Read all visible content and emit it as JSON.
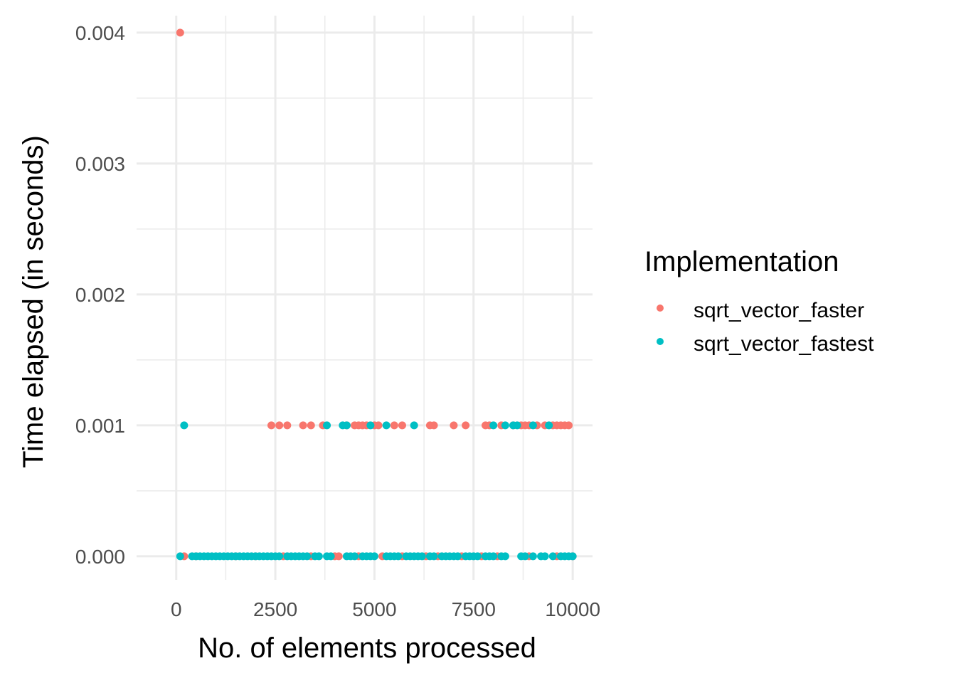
{
  "chart_data": {
    "type": "scatter",
    "xlabel": "No. of elements processed",
    "ylabel": "Time elapsed (in seconds)",
    "xlim": [
      -1000,
      10500
    ],
    "ylim": [
      -0.00018,
      0.00413
    ],
    "x_ticks": [
      0,
      2500,
      5000,
      7500,
      10000
    ],
    "x_tick_labels": [
      "0",
      "2500",
      "5000",
      "7500",
      "10000"
    ],
    "y_ticks": [
      0.0,
      0.001,
      0.002,
      0.003,
      0.004
    ],
    "y_tick_labels": [
      "0.000",
      "0.001",
      "0.002",
      "0.003",
      "0.004"
    ],
    "grid": true,
    "legend": {
      "title": "Implementation",
      "position": "right"
    },
    "series": [
      {
        "name": "sqrt_vector_faster",
        "color": "#F8766D",
        "points": [
          [
            100,
            0.004
          ],
          [
            200,
            0.0
          ],
          [
            500,
            0.0
          ],
          [
            1500,
            0.0
          ],
          [
            2000,
            0.0
          ],
          [
            2700,
            0.0
          ],
          [
            3400,
            0.0
          ],
          [
            4000,
            0.0
          ],
          [
            4100,
            0.0
          ],
          [
            4600,
            0.0
          ],
          [
            5200,
            0.0
          ],
          [
            5700,
            0.0
          ],
          [
            6300,
            0.0
          ],
          [
            6600,
            0.0
          ],
          [
            7200,
            0.0
          ],
          [
            7700,
            0.0
          ],
          [
            8100,
            0.0
          ],
          [
            8900,
            0.0
          ],
          [
            9600,
            0.0
          ],
          [
            10000,
            0.0
          ],
          [
            2400,
            0.001
          ],
          [
            2600,
            0.001
          ],
          [
            2800,
            0.001
          ],
          [
            3200,
            0.001
          ],
          [
            3400,
            0.001
          ],
          [
            3700,
            0.001
          ],
          [
            4300,
            0.001
          ],
          [
            4500,
            0.001
          ],
          [
            4600,
            0.001
          ],
          [
            4700,
            0.001
          ],
          [
            4800,
            0.001
          ],
          [
            5000,
            0.001
          ],
          [
            5100,
            0.001
          ],
          [
            5500,
            0.001
          ],
          [
            5700,
            0.001
          ],
          [
            6400,
            0.001
          ],
          [
            6500,
            0.001
          ],
          [
            7000,
            0.001
          ],
          [
            7300,
            0.001
          ],
          [
            7800,
            0.001
          ],
          [
            7900,
            0.001
          ],
          [
            8200,
            0.001
          ],
          [
            8500,
            0.001
          ],
          [
            8700,
            0.001
          ],
          [
            8800,
            0.001
          ],
          [
            8900,
            0.001
          ],
          [
            9100,
            0.001
          ],
          [
            9300,
            0.001
          ],
          [
            9500,
            0.001
          ],
          [
            9600,
            0.001
          ],
          [
            9700,
            0.001
          ],
          [
            9800,
            0.001
          ],
          [
            9900,
            0.001
          ]
        ]
      },
      {
        "name": "sqrt_vector_fastest",
        "color": "#00BFC4",
        "points": [
          [
            200,
            0.001
          ],
          [
            3800,
            0.001
          ],
          [
            4200,
            0.001
          ],
          [
            4300,
            0.001
          ],
          [
            4900,
            0.001
          ],
          [
            5300,
            0.001
          ],
          [
            6000,
            0.001
          ],
          [
            8000,
            0.001
          ],
          [
            8300,
            0.001
          ],
          [
            8500,
            0.001
          ],
          [
            8600,
            0.001
          ],
          [
            9000,
            0.001
          ],
          [
            9400,
            0.001
          ],
          [
            100,
            0.0
          ],
          [
            400,
            0.0
          ],
          [
            500,
            0.0
          ],
          [
            600,
            0.0
          ],
          [
            700,
            0.0
          ],
          [
            800,
            0.0
          ],
          [
            900,
            0.0
          ],
          [
            1000,
            0.0
          ],
          [
            1100,
            0.0
          ],
          [
            1200,
            0.0
          ],
          [
            1300,
            0.0
          ],
          [
            1400,
            0.0
          ],
          [
            1500,
            0.0
          ],
          [
            1600,
            0.0
          ],
          [
            1700,
            0.0
          ],
          [
            1800,
            0.0
          ],
          [
            1900,
            0.0
          ],
          [
            2000,
            0.0
          ],
          [
            2100,
            0.0
          ],
          [
            2200,
            0.0
          ],
          [
            2300,
            0.0
          ],
          [
            2400,
            0.0
          ],
          [
            2500,
            0.0
          ],
          [
            2600,
            0.0
          ],
          [
            2800,
            0.0
          ],
          [
            2900,
            0.0
          ],
          [
            3000,
            0.0
          ],
          [
            3100,
            0.0
          ],
          [
            3200,
            0.0
          ],
          [
            3300,
            0.0
          ],
          [
            3500,
            0.0
          ],
          [
            3600,
            0.0
          ],
          [
            3800,
            0.0
          ],
          [
            3900,
            0.0
          ],
          [
            4300,
            0.0
          ],
          [
            4400,
            0.0
          ],
          [
            4500,
            0.0
          ],
          [
            4700,
            0.0
          ],
          [
            4800,
            0.0
          ],
          [
            4900,
            0.0
          ],
          [
            5000,
            0.0
          ],
          [
            5300,
            0.0
          ],
          [
            5400,
            0.0
          ],
          [
            5500,
            0.0
          ],
          [
            5600,
            0.0
          ],
          [
            5800,
            0.0
          ],
          [
            5900,
            0.0
          ],
          [
            6000,
            0.0
          ],
          [
            6100,
            0.0
          ],
          [
            6200,
            0.0
          ],
          [
            6400,
            0.0
          ],
          [
            6500,
            0.0
          ],
          [
            6700,
            0.0
          ],
          [
            6800,
            0.0
          ],
          [
            6900,
            0.0
          ],
          [
            7000,
            0.0
          ],
          [
            7100,
            0.0
          ],
          [
            7300,
            0.0
          ],
          [
            7400,
            0.0
          ],
          [
            7500,
            0.0
          ],
          [
            7600,
            0.0
          ],
          [
            7800,
            0.0
          ],
          [
            7900,
            0.0
          ],
          [
            8000,
            0.0
          ],
          [
            8200,
            0.0
          ],
          [
            8300,
            0.0
          ],
          [
            8700,
            0.0
          ],
          [
            8800,
            0.0
          ],
          [
            9000,
            0.0
          ],
          [
            9200,
            0.0
          ],
          [
            9300,
            0.0
          ],
          [
            9500,
            0.0
          ],
          [
            9700,
            0.0
          ],
          [
            9800,
            0.0
          ],
          [
            9900,
            0.0
          ],
          [
            10000,
            0.0
          ]
        ]
      }
    ]
  }
}
